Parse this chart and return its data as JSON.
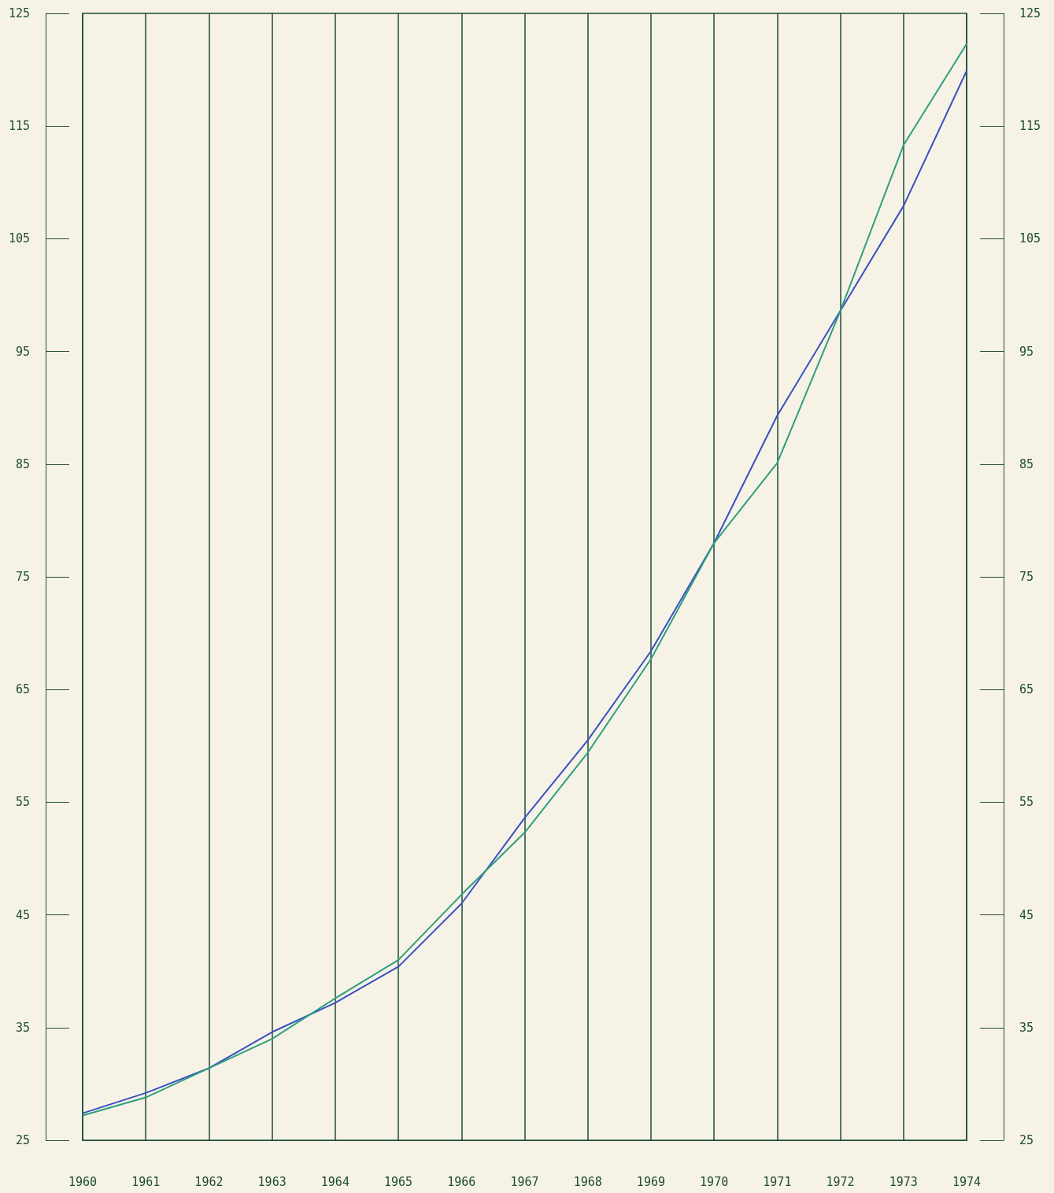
{
  "chart_data": {
    "type": "line",
    "x": [
      1960,
      1961,
      1962,
      1963,
      1964,
      1965,
      1966,
      1967,
      1968,
      1969,
      1970,
      1971,
      1972,
      1973,
      1974
    ],
    "series": [
      {
        "color": "#3a4fc2",
        "values": [
          27.4,
          29.2,
          31.4,
          34.6,
          37.2,
          40.4,
          46.0,
          53.6,
          60.5,
          68.4,
          78.0,
          89.3,
          98.6,
          107.9,
          119.9
        ]
      },
      {
        "color": "#2e9e7e",
        "values": [
          27.2,
          28.8,
          31.4,
          34.0,
          37.6,
          41.0,
          46.8,
          52.3,
          59.4,
          67.7,
          78.0,
          85.1,
          98.6,
          113.3,
          122.3
        ]
      }
    ],
    "xlim": [
      1960,
      1974
    ],
    "xticks": [
      1960,
      1961,
      1962,
      1963,
      1964,
      1965,
      1966,
      1967,
      1968,
      1969,
      1970,
      1971,
      1972,
      1973,
      1974
    ],
    "ylim": [
      25,
      125
    ],
    "yticks": [
      25,
      35,
      45,
      55,
      65,
      75,
      85,
      95,
      105,
      115,
      125
    ],
    "y2lim": [
      25,
      125
    ],
    "y2ticks": [
      25,
      35,
      45,
      55,
      65,
      75,
      85,
      95,
      105,
      115,
      125
    ],
    "grid": "x",
    "marker": "none",
    "line_style": "solid"
  }
}
